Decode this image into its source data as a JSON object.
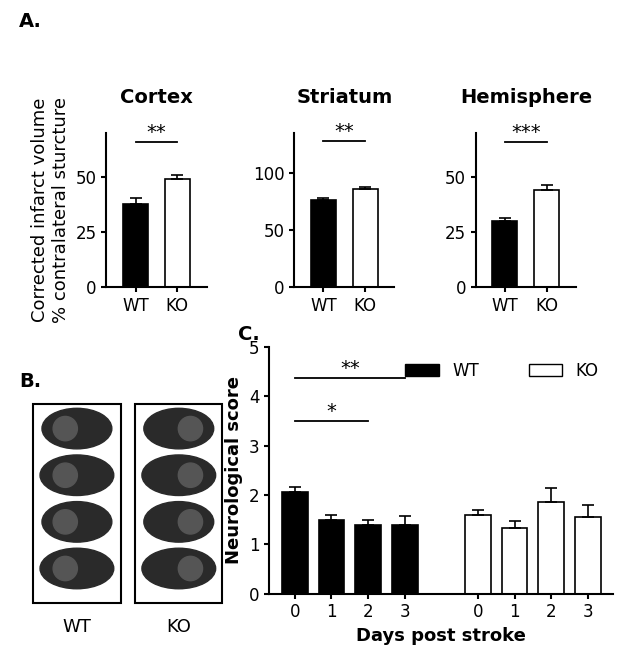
{
  "chart_data": [
    {
      "type": "bar",
      "panel": "A.",
      "title": "Cortex",
      "y_label": "Corrected infarct volume\n% contralateral sturcture",
      "categories": [
        "WT",
        "KO"
      ],
      "values": [
        38,
        49
      ],
      "error": [
        2.5,
        2
      ],
      "colors": [
        "#000000",
        "#ffffff"
      ],
      "ylim": [
        0,
        70
      ],
      "yticks": [
        0,
        25,
        50
      ],
      "annotations": [
        {
          "text": "**",
          "from": 0,
          "to": 1,
          "y": 66
        }
      ]
    },
    {
      "type": "bar",
      "title": "Striatum",
      "categories": [
        "WT",
        "KO"
      ],
      "values": [
        76,
        86
      ],
      "error": [
        2,
        2
      ],
      "colors": [
        "#000000",
        "#ffffff"
      ],
      "ylim": [
        0,
        135
      ],
      "yticks": [
        0,
        50,
        100
      ],
      "annotations": [
        {
          "text": "**",
          "from": 0,
          "to": 1,
          "y": 128
        }
      ]
    },
    {
      "type": "bar",
      "title": "Hemisphere",
      "categories": [
        "WT",
        "KO"
      ],
      "values": [
        30,
        44
      ],
      "error": [
        1.5,
        2.5
      ],
      "colors": [
        "#000000",
        "#ffffff"
      ],
      "ylim": [
        0,
        70
      ],
      "yticks": [
        0,
        25,
        50
      ],
      "annotations": [
        {
          "text": "***",
          "from": 0,
          "to": 1,
          "y": 66
        }
      ]
    },
    {
      "type": "bar",
      "panel": "C.",
      "x_label": "Days post stroke",
      "y_label": "Neurological score",
      "categories": [
        "0",
        "1",
        "2",
        "3",
        null,
        "0",
        "1",
        "2",
        "3"
      ],
      "series": [
        {
          "name": "WT",
          "color": "#000000",
          "values": [
            2.05,
            1.5,
            1.4,
            1.4,
            null,
            null,
            null,
            null,
            null
          ],
          "error": [
            0.12,
            0.1,
            0.1,
            0.18,
            null,
            null,
            null,
            null,
            null
          ]
        },
        {
          "name": "KO",
          "color": "#ffffff",
          "values": [
            null,
            null,
            null,
            null,
            null,
            1.6,
            1.33,
            1.85,
            1.55
          ],
          "error": [
            null,
            null,
            null,
            null,
            null,
            0.1,
            0.15,
            0.3,
            0.25
          ]
        }
      ],
      "ylim": [
        0,
        5
      ],
      "yticks": [
        0,
        1,
        2,
        3,
        4,
        5
      ],
      "legend": "upper right",
      "annotations": [
        {
          "text": "**",
          "from": 0,
          "to": 3,
          "y": 4.36
        },
        {
          "text": "*",
          "from": 0,
          "to": 2,
          "y": 3.5
        }
      ]
    }
  ],
  "image_panel": {
    "panel": "B.",
    "labels": [
      "WT",
      "KO"
    ]
  }
}
